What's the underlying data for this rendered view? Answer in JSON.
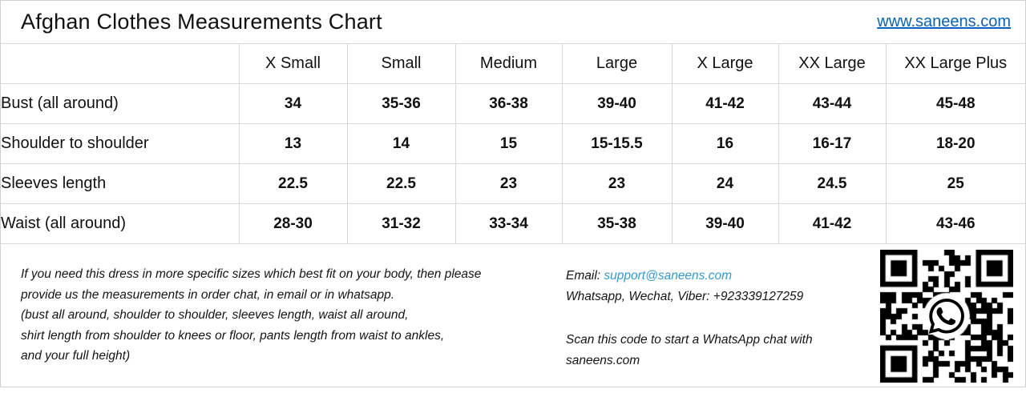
{
  "header": {
    "title": "Afghan Clothes Measurements Chart",
    "website": "www.saneens.com"
  },
  "table": {
    "size_headers": [
      "X Small",
      "Small",
      "Medium",
      "Large",
      "X Large",
      "XX Large",
      "XX Large Plus"
    ],
    "rows": [
      {
        "label": "Bust (all around)",
        "values": [
          "34",
          "35-36",
          "36-38",
          "39-40",
          "41-42",
          "43-44",
          "45-48"
        ]
      },
      {
        "label": "Shoulder to shoulder",
        "values": [
          "13",
          "14",
          "15",
          "15-15.5",
          "16",
          "16-17",
          "18-20"
        ]
      },
      {
        "label": "Sleeves length",
        "values": [
          "22.5",
          "22.5",
          "23",
          "23",
          "24",
          "24.5",
          "25"
        ]
      },
      {
        "label": "Waist (all around)",
        "values": [
          "28-30",
          "31-32",
          "33-34",
          "35-38",
          "39-40",
          "41-42",
          "43-46"
        ]
      }
    ]
  },
  "footer": {
    "note_lines": [
      "If you need this dress in more specific sizes which best fit on your body, then please",
      "provide us the measurements in order chat, in email or in whatsapp.",
      "(bust all around, shoulder to shoulder, sleeves length, waist all around,",
      "shirt length from shoulder to knees or floor, pants length from waist to ankles,",
      "and your full height)"
    ],
    "email_label": "Email:",
    "email": "support@saneens.com",
    "messengers": "Whatsapp, Wechat, Viber: +923339127259",
    "scan_lines": [
      "Scan this code to start a WhatsApp chat with",
      "saneens.com"
    ]
  },
  "icons": {
    "qr_center": "whatsapp-icon"
  },
  "colors": {
    "website_link_blue": "#0563c1",
    "email_link_blue": "#2e9bd6",
    "grid_border_gray": "#d9d9d9",
    "text_black": "#111111"
  }
}
